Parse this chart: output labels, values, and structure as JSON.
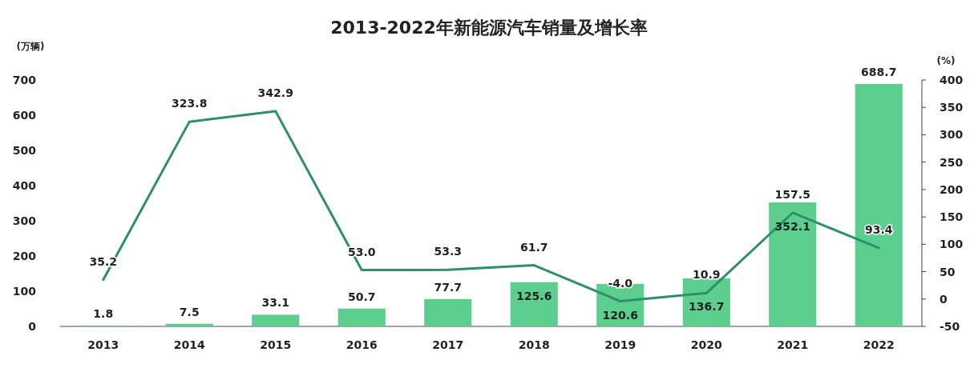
{
  "chart_data": {
    "type": "bar",
    "title": "2013-2022年新能源汽车销量及增长率",
    "ylabel": "(万辆)",
    "y2label": "(%)",
    "categories": [
      "2013",
      "2014",
      "2015",
      "2016",
      "2017",
      "2018",
      "2019",
      "2020",
      "2021",
      "2022"
    ],
    "series": [
      {
        "color": "#5ccf8e",
        "values": [
          1.8,
          7.5,
          33.1,
          50.7,
          77.7,
          125.6,
          120.6,
          136.7,
          352.1,
          688.7
        ],
        "value_labels": [
          "1.8",
          "7.5",
          "33.1",
          "50.7",
          "77.7",
          "125.6",
          "120.6",
          "136.7",
          "352.1",
          "688.7"
        ]
      },
      {
        "type": "line",
        "axis": "y2",
        "color": "#2e8f6c",
        "values": [
          35.2,
          323.8,
          342.9,
          53.0,
          53.3,
          61.7,
          -4.0,
          10.9,
          157.5,
          93.4
        ],
        "value_labels": [
          "35.2",
          "323.8",
          "342.9",
          "53.0",
          "53.3",
          "61.7",
          "-4.0",
          "10.9",
          "157.5",
          "93.4"
        ]
      }
    ],
    "ylim": [
      0,
      700
    ],
    "yticks": [
      0,
      100,
      200,
      300,
      400,
      500,
      600,
      700
    ],
    "y2lim": [
      -50,
      400
    ],
    "y2ticks": [
      -50,
      0,
      50,
      100,
      150,
      200,
      250,
      300,
      350,
      400
    ],
    "grid": false,
    "marker": "none",
    "line_style": "solid"
  }
}
